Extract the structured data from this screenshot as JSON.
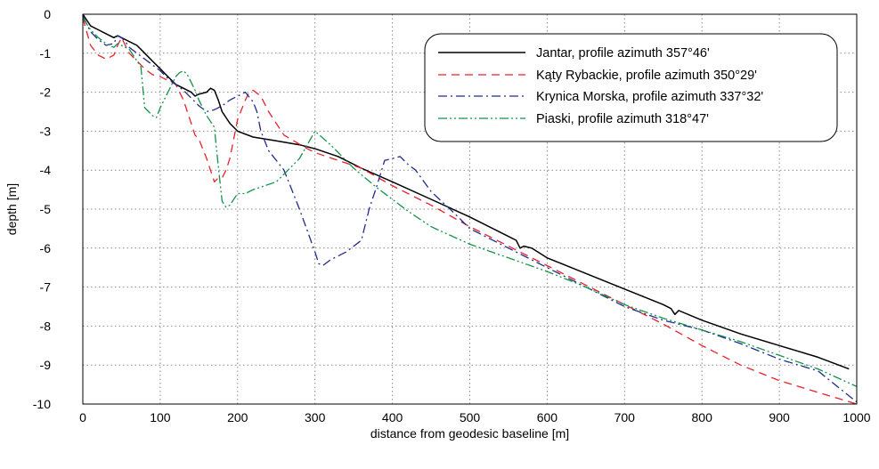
{
  "chart_data": {
    "type": "line",
    "xlabel": "distance from geodesic baseline [m]",
    "ylabel": "depth [m]",
    "xlim": [
      0,
      1000
    ],
    "ylim": [
      -10,
      0
    ],
    "x_ticks": [
      0,
      100,
      200,
      300,
      400,
      500,
      600,
      700,
      800,
      900,
      1000
    ],
    "y_ticks": [
      0,
      -1,
      -2,
      -3,
      -4,
      -5,
      -6,
      -7,
      -8,
      -9,
      -10
    ],
    "grid": true,
    "legend_position": "top-right",
    "series": [
      {
        "name": "Jantar, profile azimuth 357°46'",
        "color": "#000000",
        "dash": "solid",
        "x": [
          0,
          10,
          20,
          30,
          40,
          45,
          50,
          55,
          60,
          70,
          80,
          90,
          100,
          110,
          120,
          130,
          140,
          145,
          150,
          160,
          165,
          170,
          175,
          180,
          190,
          200,
          220,
          250,
          280,
          300,
          330,
          360,
          400,
          450,
          500,
          550,
          560,
          565,
          570,
          580,
          600,
          650,
          700,
          750,
          760,
          765,
          770,
          800,
          850,
          900,
          950,
          990
        ],
        "y": [
          0,
          -0.3,
          -0.4,
          -0.5,
          -0.6,
          -0.55,
          -0.6,
          -0.65,
          -0.7,
          -0.8,
          -1.0,
          -1.2,
          -1.4,
          -1.6,
          -1.8,
          -1.9,
          -2.0,
          -2.1,
          -2.05,
          -2.0,
          -1.9,
          -1.95,
          -2.2,
          -2.5,
          -2.8,
          -3.0,
          -3.15,
          -3.25,
          -3.35,
          -3.45,
          -3.65,
          -3.95,
          -4.3,
          -4.75,
          -5.2,
          -5.7,
          -5.8,
          -6.0,
          -5.95,
          -6.0,
          -6.25,
          -6.65,
          -7.05,
          -7.45,
          -7.55,
          -7.7,
          -7.6,
          -7.85,
          -8.2,
          -8.5,
          -8.8,
          -9.1
        ]
      },
      {
        "name": "Kąty Rybackie, profile azimuth 350°29'",
        "color": "#e8202a",
        "dash": "dashed",
        "x": [
          0,
          10,
          20,
          30,
          40,
          45,
          50,
          55,
          60,
          70,
          80,
          90,
          100,
          110,
          120,
          130,
          140,
          145,
          150,
          160,
          170,
          175,
          180,
          185,
          190,
          200,
          210,
          215,
          220,
          230,
          240,
          260,
          290,
          300,
          330,
          360,
          400,
          450,
          500,
          550,
          600,
          650,
          700,
          750,
          800,
          850,
          900,
          950,
          1000
        ],
        "y": [
          -0.1,
          -0.8,
          -1.05,
          -1.15,
          -1.05,
          -0.8,
          -0.6,
          -0.8,
          -1.0,
          -1.2,
          -1.4,
          -1.55,
          -1.6,
          -1.7,
          -1.8,
          -2.2,
          -2.8,
          -3.1,
          -3.2,
          -3.7,
          -4.3,
          -4.2,
          -4.2,
          -4.0,
          -3.7,
          -2.7,
          -2.2,
          -2.0,
          -1.95,
          -2.1,
          -2.5,
          -3.1,
          -3.45,
          -3.55,
          -3.75,
          -3.95,
          -4.4,
          -4.9,
          -5.45,
          -5.95,
          -6.45,
          -6.95,
          -7.45,
          -7.95,
          -8.5,
          -9.0,
          -9.4,
          -9.7,
          -10.0
        ]
      },
      {
        "name": "Krynica Morska, profile azimuth 337°32'",
        "color": "#1f2a8c",
        "dash": "dashdot",
        "x": [
          0,
          10,
          20,
          30,
          40,
          45,
          50,
          55,
          60,
          70,
          80,
          90,
          100,
          110,
          120,
          130,
          140,
          145,
          150,
          160,
          170,
          180,
          190,
          200,
          210,
          220,
          225,
          230,
          240,
          260,
          280,
          300,
          305,
          310,
          320,
          340,
          360,
          370,
          380,
          390,
          400,
          410,
          420,
          430,
          450,
          480,
          500,
          550,
          600,
          650,
          700,
          750,
          800,
          850,
          900,
          950,
          1000
        ],
        "y": [
          -0.05,
          -0.45,
          -0.65,
          -0.8,
          -0.75,
          -0.55,
          -0.6,
          -0.7,
          -0.85,
          -1.0,
          -1.15,
          -1.3,
          -1.45,
          -1.65,
          -1.8,
          -1.95,
          -2.15,
          -2.25,
          -2.35,
          -2.5,
          -2.45,
          -2.35,
          -2.2,
          -2.1,
          -2.0,
          -2.25,
          -2.5,
          -3.0,
          -3.5,
          -4.0,
          -5.0,
          -6.1,
          -6.4,
          -6.45,
          -6.3,
          -6.1,
          -5.8,
          -5.0,
          -4.4,
          -3.75,
          -3.7,
          -3.65,
          -3.85,
          -4.0,
          -4.55,
          -5.1,
          -5.5,
          -6.0,
          -6.5,
          -7.0,
          -7.5,
          -7.85,
          -8.1,
          -8.45,
          -8.85,
          -9.15,
          -9.95
        ]
      },
      {
        "name": "Piaski, profile azimuth 318°47'",
        "color": "#129448",
        "dash": "dashdotdot",
        "x": [
          0,
          10,
          20,
          30,
          40,
          45,
          50,
          55,
          60,
          65,
          70,
          75,
          80,
          85,
          90,
          95,
          100,
          110,
          120,
          125,
          130,
          135,
          140,
          145,
          150,
          160,
          170,
          175,
          180,
          185,
          190,
          200,
          210,
          220,
          250,
          280,
          290,
          300,
          320,
          350,
          380,
          400,
          420,
          450,
          500,
          550,
          600,
          650,
          700,
          750,
          800,
          850,
          900,
          950,
          1000
        ],
        "y": [
          -0.1,
          -0.4,
          -0.6,
          -0.75,
          -0.85,
          -0.75,
          -0.8,
          -0.85,
          -0.9,
          -1.05,
          -1.2,
          -1.35,
          -2.4,
          -2.5,
          -2.6,
          -2.65,
          -2.4,
          -2.0,
          -1.6,
          -1.5,
          -1.45,
          -1.55,
          -1.75,
          -1.95,
          -2.2,
          -2.6,
          -2.9,
          -3.9,
          -4.8,
          -4.95,
          -4.9,
          -4.6,
          -4.6,
          -4.5,
          -4.3,
          -3.7,
          -3.35,
          -3.0,
          -3.35,
          -3.95,
          -4.45,
          -4.75,
          -5.05,
          -5.45,
          -5.9,
          -6.25,
          -6.6,
          -7.0,
          -7.45,
          -7.8,
          -8.1,
          -8.4,
          -8.75,
          -9.1,
          -9.55
        ]
      }
    ]
  }
}
